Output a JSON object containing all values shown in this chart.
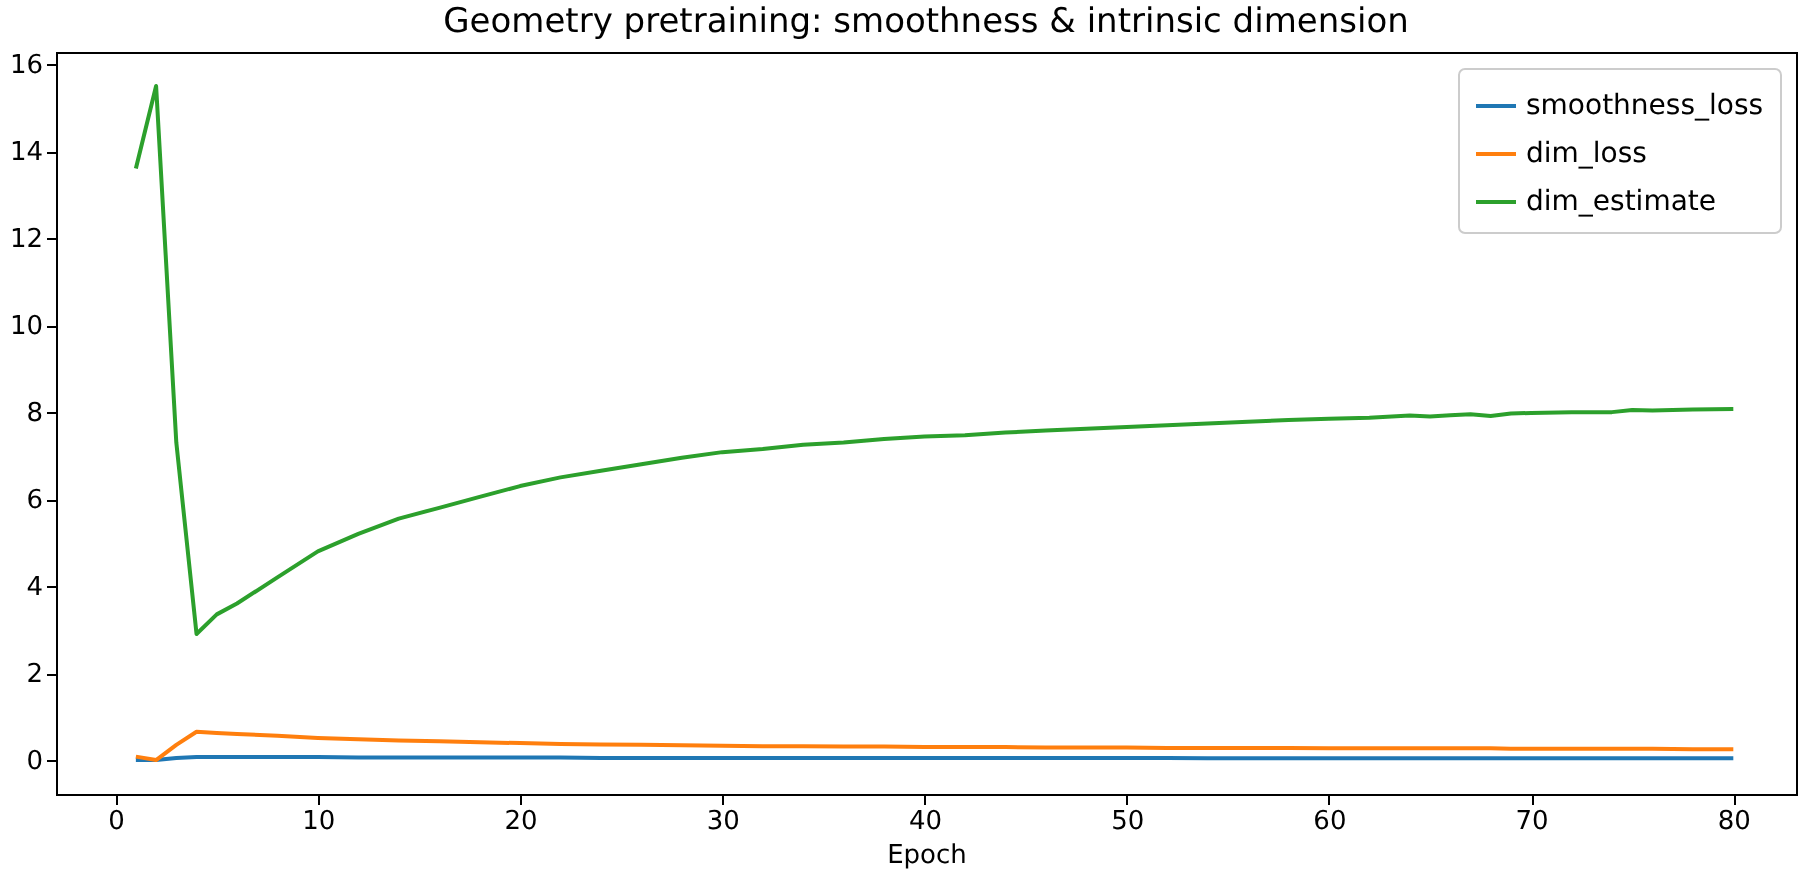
{
  "chart_data": {
    "type": "line",
    "title": "Geometry pretraining: smoothness & intrinsic dimension",
    "xlabel": "Epoch",
    "x": [
      1,
      2,
      3,
      4,
      5,
      6,
      8,
      10,
      12,
      14,
      16,
      18,
      20,
      22,
      24,
      26,
      28,
      30,
      32,
      34,
      36,
      38,
      40,
      42,
      44,
      46,
      48,
      50,
      52,
      54,
      56,
      58,
      60,
      62,
      64,
      65,
      66,
      67,
      68,
      69,
      70,
      72,
      74,
      75,
      76,
      78,
      80
    ],
    "series": [
      {
        "name": "smoothness_loss",
        "color": "#1f77b4",
        "values": [
          0.0,
          0.0,
          0.05,
          0.07,
          0.07,
          0.07,
          0.07,
          0.07,
          0.06,
          0.06,
          0.06,
          0.06,
          0.06,
          0.06,
          0.05,
          0.05,
          0.05,
          0.05,
          0.05,
          0.05,
          0.05,
          0.05,
          0.05,
          0.05,
          0.05,
          0.05,
          0.05,
          0.05,
          0.05,
          0.04,
          0.04,
          0.04,
          0.04,
          0.04,
          0.04,
          0.04,
          0.04,
          0.04,
          0.04,
          0.04,
          0.04,
          0.04,
          0.04,
          0.04,
          0.04,
          0.04,
          0.04
        ]
      },
      {
        "name": "dim_loss",
        "color": "#ff7f0e",
        "values": [
          0.08,
          0.0,
          0.35,
          0.65,
          0.62,
          0.6,
          0.56,
          0.51,
          0.48,
          0.45,
          0.43,
          0.41,
          0.39,
          0.37,
          0.36,
          0.35,
          0.34,
          0.33,
          0.32,
          0.32,
          0.31,
          0.31,
          0.3,
          0.3,
          0.3,
          0.29,
          0.29,
          0.29,
          0.28,
          0.28,
          0.28,
          0.28,
          0.27,
          0.27,
          0.27,
          0.27,
          0.27,
          0.27,
          0.27,
          0.26,
          0.26,
          0.26,
          0.26,
          0.26,
          0.26,
          0.25,
          0.25
        ]
      },
      {
        "name": "dim_estimate",
        "color": "#2ca02c",
        "values": [
          13.6,
          15.5,
          7.3,
          2.9,
          3.35,
          3.6,
          4.2,
          4.8,
          5.2,
          5.55,
          5.8,
          6.05,
          6.3,
          6.5,
          6.65,
          6.8,
          6.95,
          7.08,
          7.15,
          7.25,
          7.3,
          7.38,
          7.44,
          7.47,
          7.53,
          7.58,
          7.62,
          7.66,
          7.7,
          7.74,
          7.78,
          7.82,
          7.85,
          7.87,
          7.92,
          7.9,
          7.93,
          7.95,
          7.91,
          7.97,
          7.98,
          8.0,
          8.0,
          8.05,
          8.04,
          8.06,
          8.07
        ]
      }
    ],
    "xlim": [
      -2.95,
      83.1
    ],
    "xticks": [
      0,
      10,
      20,
      30,
      40,
      50,
      60,
      70,
      80
    ],
    "ylim": [
      -0.78,
      16.28
    ],
    "yticks": [
      0,
      2,
      4,
      6,
      8,
      10,
      12,
      14,
      16
    ],
    "legend": "top right"
  }
}
